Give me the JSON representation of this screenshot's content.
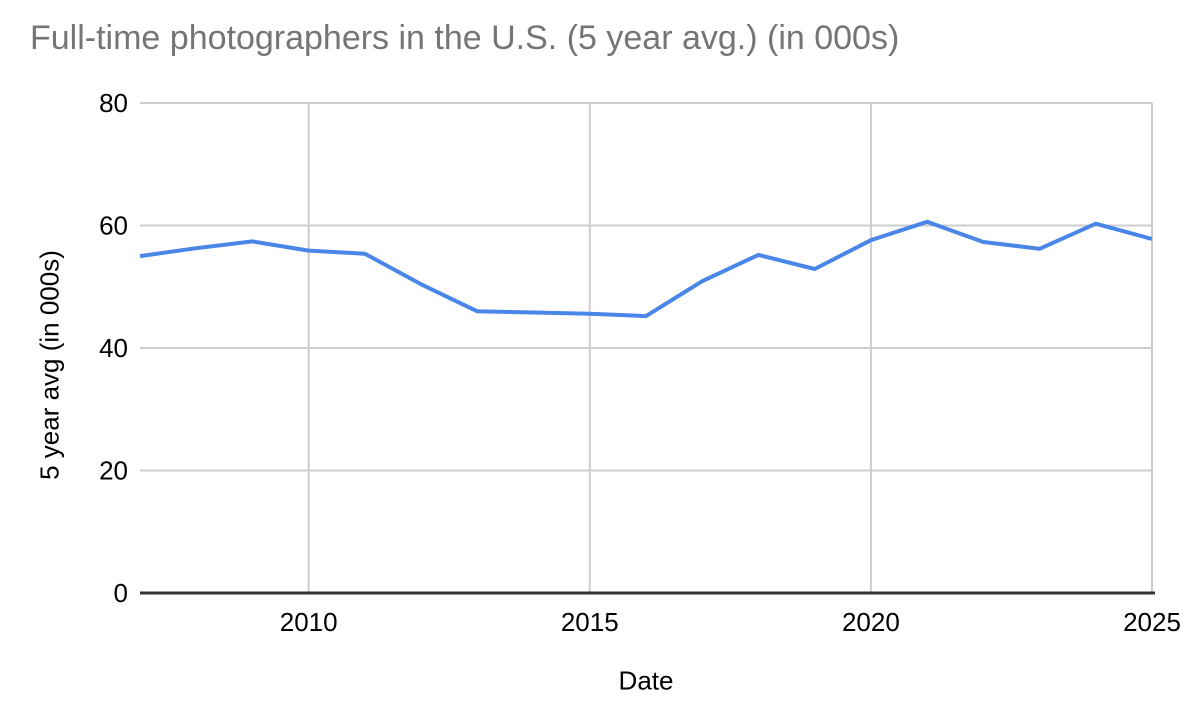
{
  "chart_data": {
    "type": "line",
    "title": "Full-time photographers in the U.S. (5 year avg.) (in 000s)",
    "xlabel": "Date",
    "ylabel": "5 year avg (in 000s)",
    "x": [
      2007,
      2008,
      2009,
      2010,
      2011,
      2012,
      2013,
      2014,
      2015,
      2016,
      2017,
      2018,
      2019,
      2020,
      2021,
      2022,
      2023,
      2024,
      2025
    ],
    "values": [
      55.0,
      56.3,
      57.4,
      55.9,
      55.4,
      50.4,
      46.0,
      45.8,
      45.6,
      45.2,
      50.9,
      55.2,
      52.9,
      57.6,
      60.6,
      57.3,
      56.2,
      60.3,
      57.8
    ],
    "xlim": [
      2007,
      2025
    ],
    "ylim": [
      0,
      80
    ],
    "yticks": [
      0,
      20,
      40,
      60,
      80
    ],
    "xticks": [
      2010,
      2015,
      2020,
      2025
    ],
    "grid": true,
    "legend": "none"
  },
  "style": {
    "background": "#ffffff",
    "title_color": "#757575",
    "axis_label_color": "#000000",
    "gridline_color": "#cccccc",
    "axis_line_color": "#333333",
    "series_color": "#4a86e8"
  }
}
